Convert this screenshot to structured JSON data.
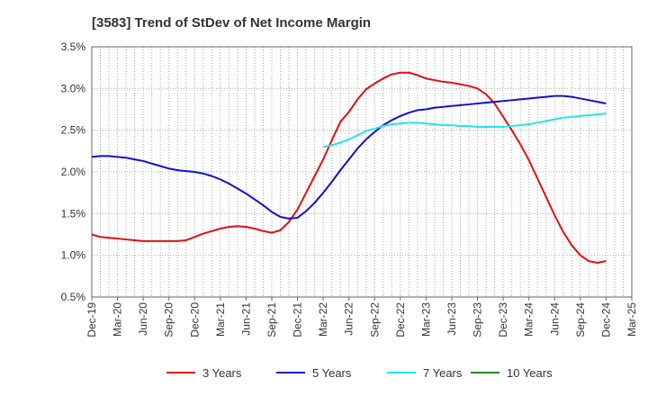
{
  "chart_data": {
    "type": "line",
    "title": "[3583]  Trend of StDev of Net Income Margin",
    "xlabel": "",
    "ylabel": "",
    "x_ticks": [
      "Dec-19",
      "Mar-20",
      "Jun-20",
      "Sep-20",
      "Dec-20",
      "Mar-21",
      "Jun-21",
      "Sep-21",
      "Dec-21",
      "Mar-22",
      "Jun-22",
      "Sep-22",
      "Dec-22",
      "Mar-23",
      "Jun-23",
      "Sep-23",
      "Dec-23",
      "Mar-24",
      "Jun-24",
      "Sep-24",
      "Dec-24",
      "Mar-25"
    ],
    "y_ticks": [
      "0.5%",
      "1.0%",
      "1.5%",
      "2.0%",
      "2.5%",
      "3.0%",
      "3.5%"
    ],
    "ylim": [
      0.5,
      3.5
    ],
    "grid": true,
    "legend_position": "bottom",
    "series": [
      {
        "name": "3 Years",
        "color": "#dd1111",
        "points": [
          [
            "Dec-19",
            1.25
          ],
          [
            "Jan-20",
            1.22
          ],
          [
            "Feb-20",
            1.21
          ],
          [
            "Mar-20",
            1.2
          ],
          [
            "Apr-20",
            1.19
          ],
          [
            "May-20",
            1.18
          ],
          [
            "Jun-20",
            1.17
          ],
          [
            "Jul-20",
            1.17
          ],
          [
            "Aug-20",
            1.17
          ],
          [
            "Sep-20",
            1.17
          ],
          [
            "Oct-20",
            1.17
          ],
          [
            "Nov-20",
            1.18
          ],
          [
            "Dec-20",
            1.22
          ],
          [
            "Jan-21",
            1.26
          ],
          [
            "Feb-21",
            1.29
          ],
          [
            "Mar-21",
            1.32
          ],
          [
            "Apr-21",
            1.34
          ],
          [
            "May-21",
            1.35
          ],
          [
            "Jun-21",
            1.34
          ],
          [
            "Jul-21",
            1.32
          ],
          [
            "Aug-21",
            1.29
          ],
          [
            "Sep-21",
            1.27
          ],
          [
            "Oct-21",
            1.3
          ],
          [
            "Nov-21",
            1.4
          ],
          [
            "Dec-21",
            1.55
          ],
          [
            "Jan-22",
            1.75
          ],
          [
            "Feb-22",
            1.95
          ],
          [
            "Mar-22",
            2.15
          ],
          [
            "Apr-22",
            2.38
          ],
          [
            "May-22",
            2.6
          ],
          [
            "Jun-22",
            2.72
          ],
          [
            "Jul-22",
            2.87
          ],
          [
            "Aug-22",
            2.99
          ],
          [
            "Sep-22",
            3.06
          ],
          [
            "Oct-22",
            3.12
          ],
          [
            "Nov-22",
            3.17
          ],
          [
            "Dec-22",
            3.19
          ],
          [
            "Jan-23",
            3.19
          ],
          [
            "Feb-23",
            3.16
          ],
          [
            "Mar-23",
            3.12
          ],
          [
            "Apr-23",
            3.1
          ],
          [
            "May-23",
            3.08
          ],
          [
            "Jun-23",
            3.07
          ],
          [
            "Jul-23",
            3.05
          ],
          [
            "Aug-23",
            3.03
          ],
          [
            "Sep-23",
            3.0
          ],
          [
            "Oct-23",
            2.93
          ],
          [
            "Nov-23",
            2.82
          ],
          [
            "Dec-23",
            2.66
          ],
          [
            "Jan-24",
            2.5
          ],
          [
            "Feb-24",
            2.33
          ],
          [
            "Mar-24",
            2.14
          ],
          [
            "Apr-24",
            1.92
          ],
          [
            "May-24",
            1.7
          ],
          [
            "Jun-24",
            1.48
          ],
          [
            "Jul-24",
            1.28
          ],
          [
            "Aug-24",
            1.12
          ],
          [
            "Sep-24",
            1.0
          ],
          [
            "Oct-24",
            0.93
          ],
          [
            "Nov-24",
            0.91
          ],
          [
            "Dec-24",
            0.93
          ]
        ]
      },
      {
        "name": "5 Years",
        "color": "#1111cc",
        "points": [
          [
            "Dec-19",
            2.18
          ],
          [
            "Jan-20",
            2.19
          ],
          [
            "Feb-20",
            2.19
          ],
          [
            "Mar-20",
            2.18
          ],
          [
            "Apr-20",
            2.17
          ],
          [
            "May-20",
            2.15
          ],
          [
            "Jun-20",
            2.13
          ],
          [
            "Jul-20",
            2.1
          ],
          [
            "Aug-20",
            2.07
          ],
          [
            "Sep-20",
            2.04
          ],
          [
            "Oct-20",
            2.02
          ],
          [
            "Nov-20",
            2.01
          ],
          [
            "Dec-20",
            2.0
          ],
          [
            "Jan-21",
            1.98
          ],
          [
            "Feb-21",
            1.95
          ],
          [
            "Mar-21",
            1.91
          ],
          [
            "Apr-21",
            1.86
          ],
          [
            "May-21",
            1.8
          ],
          [
            "Jun-21",
            1.74
          ],
          [
            "Jul-21",
            1.67
          ],
          [
            "Aug-21",
            1.6
          ],
          [
            "Sep-21",
            1.52
          ],
          [
            "Oct-21",
            1.46
          ],
          [
            "Nov-21",
            1.44
          ],
          [
            "Dec-21",
            1.45
          ],
          [
            "Jan-22",
            1.53
          ],
          [
            "Feb-22",
            1.63
          ],
          [
            "Mar-22",
            1.75
          ],
          [
            "Apr-22",
            1.88
          ],
          [
            "May-22",
            2.02
          ],
          [
            "Jun-22",
            2.15
          ],
          [
            "Jul-22",
            2.28
          ],
          [
            "Aug-22",
            2.39
          ],
          [
            "Sep-22",
            2.48
          ],
          [
            "Oct-22",
            2.56
          ],
          [
            "Nov-22",
            2.62
          ],
          [
            "Dec-22",
            2.67
          ],
          [
            "Jan-23",
            2.71
          ],
          [
            "Feb-23",
            2.74
          ],
          [
            "Mar-23",
            2.75
          ],
          [
            "Apr-23",
            2.77
          ],
          [
            "May-23",
            2.78
          ],
          [
            "Jun-23",
            2.79
          ],
          [
            "Jul-23",
            2.8
          ],
          [
            "Aug-23",
            2.81
          ],
          [
            "Sep-23",
            2.82
          ],
          [
            "Oct-23",
            2.83
          ],
          [
            "Nov-23",
            2.84
          ],
          [
            "Dec-23",
            2.85
          ],
          [
            "Jan-24",
            2.86
          ],
          [
            "Feb-24",
            2.87
          ],
          [
            "Mar-24",
            2.88
          ],
          [
            "Apr-24",
            2.89
          ],
          [
            "May-24",
            2.9
          ],
          [
            "Jun-24",
            2.91
          ],
          [
            "Jul-24",
            2.91
          ],
          [
            "Aug-24",
            2.9
          ],
          [
            "Sep-24",
            2.88
          ],
          [
            "Oct-24",
            2.86
          ],
          [
            "Nov-24",
            2.84
          ],
          [
            "Dec-24",
            2.82
          ]
        ]
      },
      {
        "name": "7 Years",
        "color": "#22e5ee",
        "points": [
          [
            "Mar-22",
            2.3
          ],
          [
            "Apr-22",
            2.32
          ],
          [
            "May-22",
            2.35
          ],
          [
            "Jun-22",
            2.39
          ],
          [
            "Jul-22",
            2.44
          ],
          [
            "Aug-22",
            2.49
          ],
          [
            "Sep-22",
            2.52
          ],
          [
            "Oct-22",
            2.55
          ],
          [
            "Nov-22",
            2.57
          ],
          [
            "Dec-22",
            2.58
          ],
          [
            "Jan-23",
            2.59
          ],
          [
            "Feb-23",
            2.59
          ],
          [
            "Mar-23",
            2.58
          ],
          [
            "Apr-23",
            2.57
          ],
          [
            "May-23",
            2.56
          ],
          [
            "Jun-23",
            2.56
          ],
          [
            "Jul-23",
            2.55
          ],
          [
            "Aug-23",
            2.55
          ],
          [
            "Sep-23",
            2.54
          ],
          [
            "Oct-23",
            2.54
          ],
          [
            "Nov-23",
            2.54
          ],
          [
            "Dec-23",
            2.54
          ],
          [
            "Jan-24",
            2.55
          ],
          [
            "Feb-24",
            2.56
          ],
          [
            "Mar-24",
            2.57
          ],
          [
            "Apr-24",
            2.59
          ],
          [
            "May-24",
            2.61
          ],
          [
            "Jun-24",
            2.63
          ],
          [
            "Jul-24",
            2.65
          ],
          [
            "Aug-24",
            2.66
          ],
          [
            "Sep-24",
            2.67
          ],
          [
            "Oct-24",
            2.68
          ],
          [
            "Nov-24",
            2.69
          ],
          [
            "Dec-24",
            2.7
          ]
        ]
      },
      {
        "name": "10 Years",
        "color": "#228822",
        "points": []
      }
    ]
  }
}
